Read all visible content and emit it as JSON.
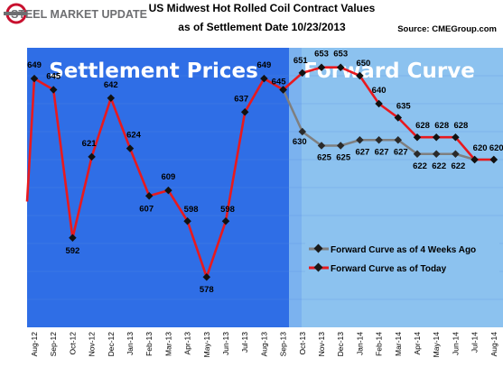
{
  "header": {
    "logo_text": "STEEL MARKET UPDATE",
    "title_line1": "US Midwest Hot Rolled Coil Contract Values",
    "title_line2": "as of Settlement Date 10/23/2013",
    "source": "Source: CMEGroup.com"
  },
  "colors": {
    "settlement_panel": "#2f6ee6",
    "forward_panel": "#8cc2ef",
    "today_line": "#e8191e",
    "ago_line": "#7f7f7f",
    "logo_red": "#c8102e",
    "logo_gray": "#6d6e71"
  },
  "chart_data": {
    "type": "line",
    "title": "US Midwest Hot Rolled Coil Contract Values",
    "subtitle": "as of Settlement Date 10/23/2013",
    "panels": [
      "Settlement Prices",
      "Forward Curve"
    ],
    "categories": [
      "Aug-12",
      "Sep-12",
      "Oct-12",
      "Nov-12",
      "Dec-12",
      "Jan-13",
      "Feb-13",
      "Mar-13",
      "Apr-13",
      "May-13",
      "Jun-13",
      "Jul-13",
      "Aug-13",
      "Sep-13",
      "Oct-13",
      "Nov-13",
      "Dec-13",
      "Jan-14",
      "Feb-14",
      "Mar-14",
      "Apr-14",
      "May-14",
      "Jun-14",
      "Jul-14",
      "Aug-14"
    ],
    "ylim": [
      560,
      660
    ],
    "grid": true,
    "legend_position": "bottom-right",
    "series": [
      {
        "name": "Forward Curve as of Today",
        "color": "#e8191e",
        "values": [
          649,
          645,
          592,
          621,
          642,
          624,
          607,
          609,
          598,
          578,
          598,
          637,
          649,
          645,
          651,
          653,
          653,
          650,
          640,
          635,
          628,
          628,
          628,
          620,
          620
        ]
      },
      {
        "name": "Forward Curve as of 4 Weeks Ago",
        "color": "#7f7f7f",
        "values": [
          null,
          null,
          null,
          null,
          null,
          null,
          null,
          null,
          null,
          null,
          null,
          null,
          null,
          645,
          630,
          625,
          625,
          627,
          627,
          627,
          622,
          622,
          622,
          620,
          620
        ]
      }
    ],
    "labels_today": [
      "649",
      "645",
      "592",
      "621",
      "642",
      "624",
      "607",
      "609",
      "598",
      "578",
      "598",
      "637",
      "649",
      "645",
      "651",
      "653",
      "653",
      "650",
      "640",
      "635",
      "628",
      "628",
      "628",
      "620",
      "620"
    ],
    "labels_ago": [
      "",
      "",
      "",
      "",
      "",
      "",
      "",
      "",
      "",
      "",
      "",
      "",
      "",
      "",
      "630",
      "625",
      "625",
      "627",
      "627",
      "627",
      "622",
      "622",
      "622",
      "",
      ""
    ]
  }
}
